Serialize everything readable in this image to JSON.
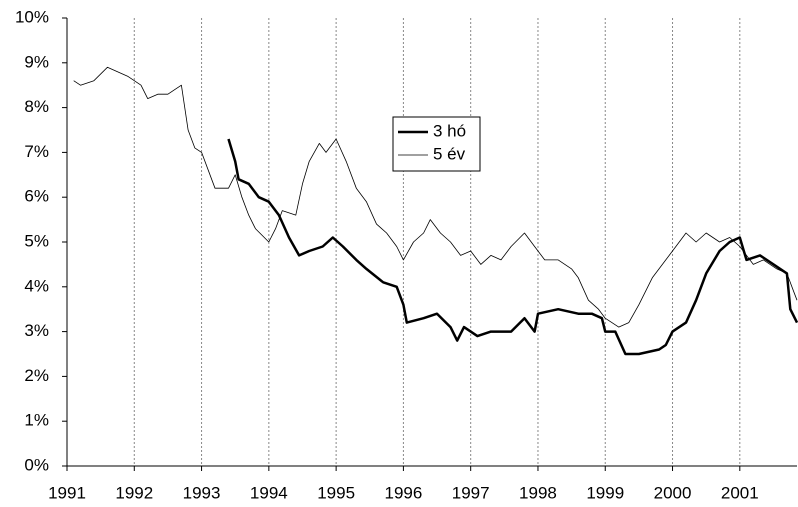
{
  "chart_data": {
    "type": "line",
    "series": [
      {
        "name": "3 hó",
        "color": "#000000",
        "width": 2.5,
        "x": [
          1993.4,
          1993.5,
          1993.55,
          1993.7,
          1993.85,
          1994.0,
          1994.15,
          1994.3,
          1994.45,
          1994.6,
          1994.8,
          1994.95,
          1995.1,
          1995.3,
          1995.45,
          1995.7,
          1995.9,
          1996.0,
          1996.05,
          1996.3,
          1996.5,
          1996.7,
          1996.8,
          1996.9,
          1997.1,
          1997.3,
          1997.6,
          1997.8,
          1997.95,
          1998.0,
          1998.3,
          1998.6,
          1998.8,
          1998.95,
          1999.0,
          1999.15,
          1999.3,
          1999.5,
          1999.8,
          1999.9,
          2000.0,
          2000.2,
          2000.35,
          2000.5,
          2000.7,
          2000.85,
          2001.0,
          2001.1,
          2001.3,
          2001.5,
          2001.7,
          2001.75,
          2001.85
        ],
        "values": [
          7.3,
          6.8,
          6.4,
          6.3,
          6.0,
          5.9,
          5.6,
          5.1,
          4.7,
          4.8,
          4.9,
          5.1,
          4.9,
          4.6,
          4.4,
          4.1,
          4.0,
          3.6,
          3.2,
          3.3,
          3.4,
          3.1,
          2.8,
          3.1,
          2.9,
          3.0,
          3.0,
          3.3,
          3.0,
          3.4,
          3.5,
          3.4,
          3.4,
          3.3,
          3.0,
          3.0,
          2.5,
          2.5,
          2.6,
          2.7,
          3.0,
          3.2,
          3.7,
          4.3,
          4.8,
          5.0,
          5.1,
          4.6,
          4.7,
          4.5,
          4.3,
          3.5,
          3.2
        ]
      },
      {
        "name": "5 év",
        "color": "#000000",
        "width": 0.8,
        "x": [
          1991.1,
          1991.2,
          1991.4,
          1991.6,
          1991.75,
          1991.9,
          1992.1,
          1992.2,
          1992.35,
          1992.5,
          1992.6,
          1992.7,
          1992.8,
          1992.9,
          1993.0,
          1993.1,
          1993.2,
          1993.4,
          1993.5,
          1993.6,
          1993.7,
          1993.8,
          1994.0,
          1994.1,
          1994.2,
          1994.4,
          1994.5,
          1994.6,
          1994.75,
          1994.85,
          1995.0,
          1995.15,
          1995.3,
          1995.45,
          1995.6,
          1995.75,
          1995.9,
          1996.0,
          1996.15,
          1996.3,
          1996.4,
          1996.55,
          1996.7,
          1996.85,
          1997.0,
          1997.15,
          1997.3,
          1997.45,
          1997.6,
          1997.8,
          1997.95,
          1998.1,
          1998.3,
          1998.5,
          1998.6,
          1998.75,
          1998.9,
          1999.0,
          1999.2,
          1999.35,
          1999.5,
          1999.7,
          1999.85,
          2000.0,
          2000.2,
          2000.35,
          2000.5,
          2000.7,
          2000.85,
          2001.0,
          2001.2,
          2001.35,
          2001.55,
          2001.7,
          2001.8,
          2001.85
        ],
        "values": [
          8.6,
          8.5,
          8.6,
          8.9,
          8.8,
          8.7,
          8.5,
          8.2,
          8.3,
          8.3,
          8.4,
          8.5,
          7.5,
          7.1,
          7.0,
          6.6,
          6.2,
          6.2,
          6.5,
          6.0,
          5.6,
          5.3,
          5.0,
          5.3,
          5.7,
          5.6,
          6.3,
          6.8,
          7.2,
          7.0,
          7.3,
          6.8,
          6.2,
          5.9,
          5.4,
          5.2,
          4.9,
          4.6,
          5.0,
          5.2,
          5.5,
          5.2,
          5.0,
          4.7,
          4.8,
          4.5,
          4.7,
          4.6,
          4.9,
          5.2,
          4.9,
          4.6,
          4.6,
          4.4,
          4.2,
          3.7,
          3.5,
          3.3,
          3.1,
          3.2,
          3.6,
          4.2,
          4.5,
          4.8,
          5.2,
          5.0,
          5.2,
          5.0,
          5.1,
          4.9,
          4.5,
          4.6,
          4.4,
          4.3,
          3.9,
          3.7
        ]
      }
    ],
    "xlim": [
      1991,
      2001.85
    ],
    "xticks": [
      1991,
      1992,
      1993,
      1994,
      1995,
      1996,
      1997,
      1998,
      1999,
      2000,
      2001
    ],
    "ylim": [
      0,
      10
    ],
    "yticks": [
      {
        "value": 0,
        "label": "0%"
      },
      {
        "value": 1,
        "label": "1%"
      },
      {
        "value": 2,
        "label": "2%"
      },
      {
        "value": 3,
        "label": "3%"
      },
      {
        "value": 4,
        "label": "4%"
      },
      {
        "value": 5,
        "label": "5%"
      },
      {
        "value": 6,
        "label": "6%"
      },
      {
        "value": 7,
        "label": "7%"
      },
      {
        "value": 8,
        "label": "8%"
      },
      {
        "value": 9,
        "label": "9%"
      },
      {
        "value": 10,
        "label": "10%"
      }
    ],
    "grid": true
  }
}
